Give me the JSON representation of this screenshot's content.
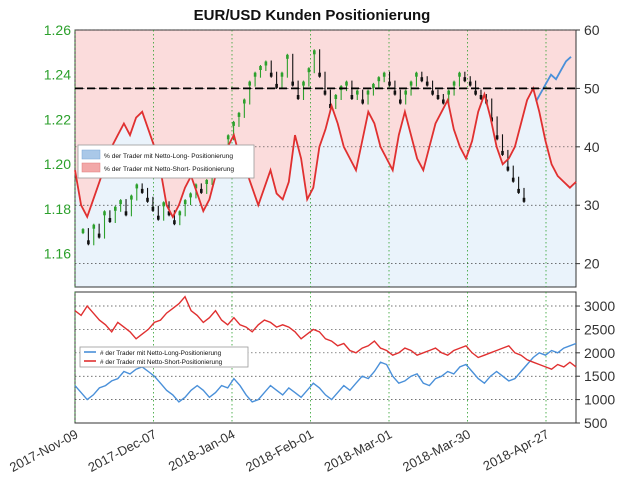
{
  "chart_data": [
    {
      "type": "candlestick+line",
      "title": "EUR/USD Kunden Positionierung",
      "left_axis": {
        "ticks": [
          1.16,
          1.18,
          1.2,
          1.22,
          1.24,
          1.26
        ],
        "range": [
          1.145,
          1.26
        ],
        "color": "#2ca02c"
      },
      "right_axis": {
        "ticks": [
          20,
          30,
          40,
          50,
          60
        ],
        "range": [
          16,
          60
        ]
      },
      "legend": {
        "placement": "center-left",
        "items": [
          {
            "label": "% der Trader mit Netto-Long- Positionierung",
            "color": "#aac8e8"
          },
          {
            "label": "% der Trader mit Netto-Short- Positionierung",
            "color": "#f2a8a8"
          }
        ]
      },
      "reference_line": {
        "value": 50,
        "style": "dashed",
        "color": "#000000"
      },
      "price_close": [
        1.17,
        1.165,
        1.172,
        1.168,
        1.178,
        1.175,
        1.18,
        1.183,
        1.178,
        1.185,
        1.19,
        1.188,
        1.184,
        1.18,
        1.176,
        1.182,
        1.178,
        1.174,
        1.178,
        1.183,
        1.186,
        1.19,
        1.188,
        1.192,
        1.197,
        1.201,
        1.204,
        1.212,
        1.218,
        1.222,
        1.228,
        1.236,
        1.24,
        1.243,
        1.245,
        1.24,
        1.235,
        1.24,
        1.248,
        1.236,
        1.23,
        1.236,
        1.242,
        1.25,
        1.24,
        1.232,
        1.226,
        1.23,
        1.234,
        1.236,
        1.23,
        1.232,
        1.228,
        1.232,
        1.235,
        1.238,
        1.24,
        1.236,
        1.232,
        1.228,
        1.232,
        1.236,
        1.24,
        1.238,
        1.236,
        1.232,
        1.23,
        1.228,
        1.232,
        1.236,
        1.24,
        1.238,
        1.236,
        1.232,
        1.23,
        1.228,
        1.22,
        1.212,
        1.205,
        1.198,
        1.193,
        1.188,
        1.184
      ],
      "price_markers": {
        "color_up": "#2ca02c",
        "color_down": "#111111"
      },
      "blue_line_end": [
        1.228,
        1.232,
        1.236,
        1.24,
        1.238,
        1.242,
        1.246,
        1.248
      ],
      "percent_long": [
        36,
        30,
        28,
        31,
        34,
        37,
        40,
        42,
        44,
        42,
        45,
        46,
        43,
        40,
        36,
        30,
        28,
        30,
        33,
        35,
        32,
        29,
        31,
        35,
        36,
        40,
        42,
        38,
        36,
        33,
        30,
        33,
        36,
        32,
        31,
        34,
        42,
        38,
        31,
        33,
        40,
        43,
        47,
        44,
        40,
        38,
        36,
        41,
        46,
        44,
        40,
        38,
        36,
        42,
        46,
        42,
        38,
        36,
        40,
        44,
        46,
        48,
        43,
        40,
        38,
        41,
        46,
        49,
        45,
        40,
        37,
        38,
        40,
        44,
        48,
        50,
        46,
        41,
        37,
        35,
        34,
        33,
        34
      ],
      "x_tick_labels": [
        "2017-Nov-09",
        "2017-Dec-07",
        "2018-Jan-04",
        "2018-Feb-01",
        "2018-Mar-01",
        "2018-Mar-30",
        "2018-Apr-27"
      ]
    },
    {
      "type": "line",
      "right_axis": {
        "ticks": [
          500,
          1000,
          1500,
          2000,
          2500,
          3000
        ],
        "range": [
          500,
          3300
        ]
      },
      "legend": {
        "placement": "top-left",
        "items": [
          {
            "label": "# der Trader mit Netto-Long-Positionierung",
            "color": "#4a90d9"
          },
          {
            "label": "# der Trader mit Netto-Short-Positionierung",
            "color": "#e03030"
          }
        ]
      },
      "series": [
        {
          "name": "# der Trader mit Netto-Long-Positionierung",
          "color": "#4a90d9",
          "values": [
            1300,
            1150,
            1000,
            1100,
            1250,
            1300,
            1400,
            1450,
            1600,
            1550,
            1650,
            1700,
            1600,
            1500,
            1350,
            1200,
            1100,
            950,
            1050,
            1200,
            1300,
            1200,
            1050,
            1150,
            1300,
            1250,
            1450,
            1300,
            1100,
            950,
            1000,
            1150,
            1300,
            1200,
            1100,
            1250,
            1150,
            1050,
            1200,
            1350,
            1250,
            1100,
            1000,
            1150,
            1300,
            1200,
            1350,
            1500,
            1450,
            1600,
            1800,
            1750,
            1500,
            1350,
            1400,
            1500,
            1550,
            1350,
            1300,
            1450,
            1500,
            1600,
            1550,
            1700,
            1750,
            1600,
            1450,
            1350,
            1500,
            1600,
            1500,
            1400,
            1450,
            1600,
            1750,
            1900,
            2000,
            1950,
            2050,
            2000,
            2100,
            2150,
            2200
          ]
        },
        {
          "name": "# der Trader mit Netto-Short-Positionierung",
          "color": "#e03030",
          "values": [
            2900,
            2800,
            3000,
            2850,
            2700,
            2600,
            2450,
            2650,
            2550,
            2450,
            2300,
            2400,
            2500,
            2650,
            2700,
            2850,
            2950,
            3050,
            3200,
            2900,
            2800,
            2650,
            2750,
            2900,
            2700,
            2600,
            2750,
            2600,
            2550,
            2450,
            2600,
            2700,
            2650,
            2550,
            2600,
            2550,
            2450,
            2300,
            2400,
            2500,
            2450,
            2300,
            2250,
            2150,
            2200,
            2050,
            2000,
            2100,
            2150,
            2250,
            2100,
            2050,
            1950,
            2000,
            2100,
            2050,
            1950,
            2000,
            2050,
            2100,
            2000,
            1950,
            2050,
            2100,
            2150,
            2000,
            1900,
            1950,
            2000,
            2050,
            2100,
            2150,
            2000,
            1950,
            1850,
            1800,
            1750,
            1700,
            1650,
            1750,
            1700,
            1800,
            1700
          ]
        }
      ]
    }
  ]
}
